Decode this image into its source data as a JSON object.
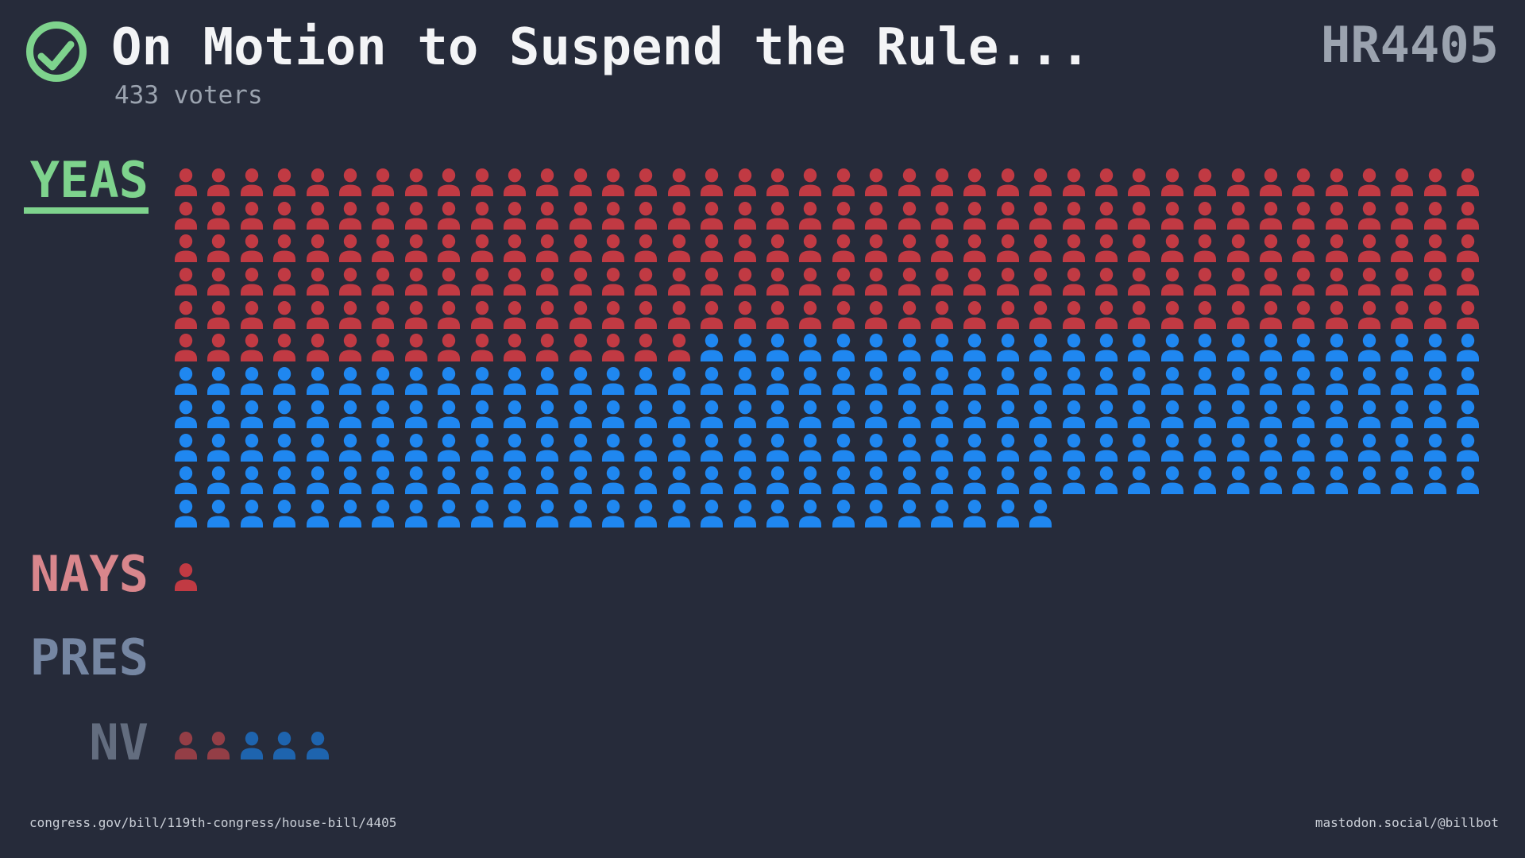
{
  "header": {
    "result_icon": "check-circle-icon",
    "title": "On Motion to Suspend the Rule...",
    "subtitle": "433 voters",
    "bill": "HR4405"
  },
  "footer": {
    "left_url": "congress.gov/bill/119th-congress/house-bill/4405",
    "right_url": "mastodon.social/@billbot"
  },
  "colors": {
    "background": "#262b3a",
    "red": "#c13a43",
    "blue": "#1f87f0",
    "red_nv": "#943e46",
    "blue_nv": "#1e64ae",
    "accent_green": "#7ed38d",
    "title_text": "#f3f4f6",
    "muted_text": "#9ba3af",
    "yeas_label": "#7ed38d",
    "nays_label": "#d8868c",
    "pres_label": "#7586a2",
    "nv_label": "#636d7f",
    "footer_text": "#cbd0d8"
  },
  "chart_data": {
    "type": "bar",
    "variant": "pictogram unit chart, 1 person icon = 1 voter, rows of 40 icons",
    "title": "On Motion to Suspend the Rule...",
    "subtitle": "433 voters",
    "bill": "HR4405",
    "result": "passed (green check-circle)",
    "icons_per_row": 40,
    "categories": [
      "YEAS",
      "NAYS",
      "PRES",
      "NV"
    ],
    "series": [
      {
        "name": "red",
        "color": "#c13a43",
        "values": [
          216,
          1,
          0,
          2
        ]
      },
      {
        "name": "blue",
        "color": "#1f87f0",
        "values": [
          211,
          0,
          0,
          3
        ]
      }
    ],
    "totals": {
      "YEAS": 427,
      "NAYS": 1,
      "PRES": 0,
      "NV": 5,
      "all_voters": 433
    },
    "legend_position": "none",
    "grid": false,
    "sections": [
      {
        "id": "yeas",
        "label": "YEAS",
        "underlined": true,
        "runs": [
          {
            "party": "red",
            "count": 216
          },
          {
            "party": "blue",
            "count": 211
          }
        ]
      },
      {
        "id": "nays",
        "label": "NAYS",
        "underlined": false,
        "runs": [
          {
            "party": "red",
            "count": 1
          }
        ]
      },
      {
        "id": "pres",
        "label": "PRES",
        "underlined": false,
        "runs": []
      },
      {
        "id": "nv",
        "label": "NV",
        "underlined": false,
        "runs": [
          {
            "party": "red_nv",
            "count": 2
          },
          {
            "party": "blue_nv",
            "count": 3
          }
        ]
      }
    ]
  }
}
